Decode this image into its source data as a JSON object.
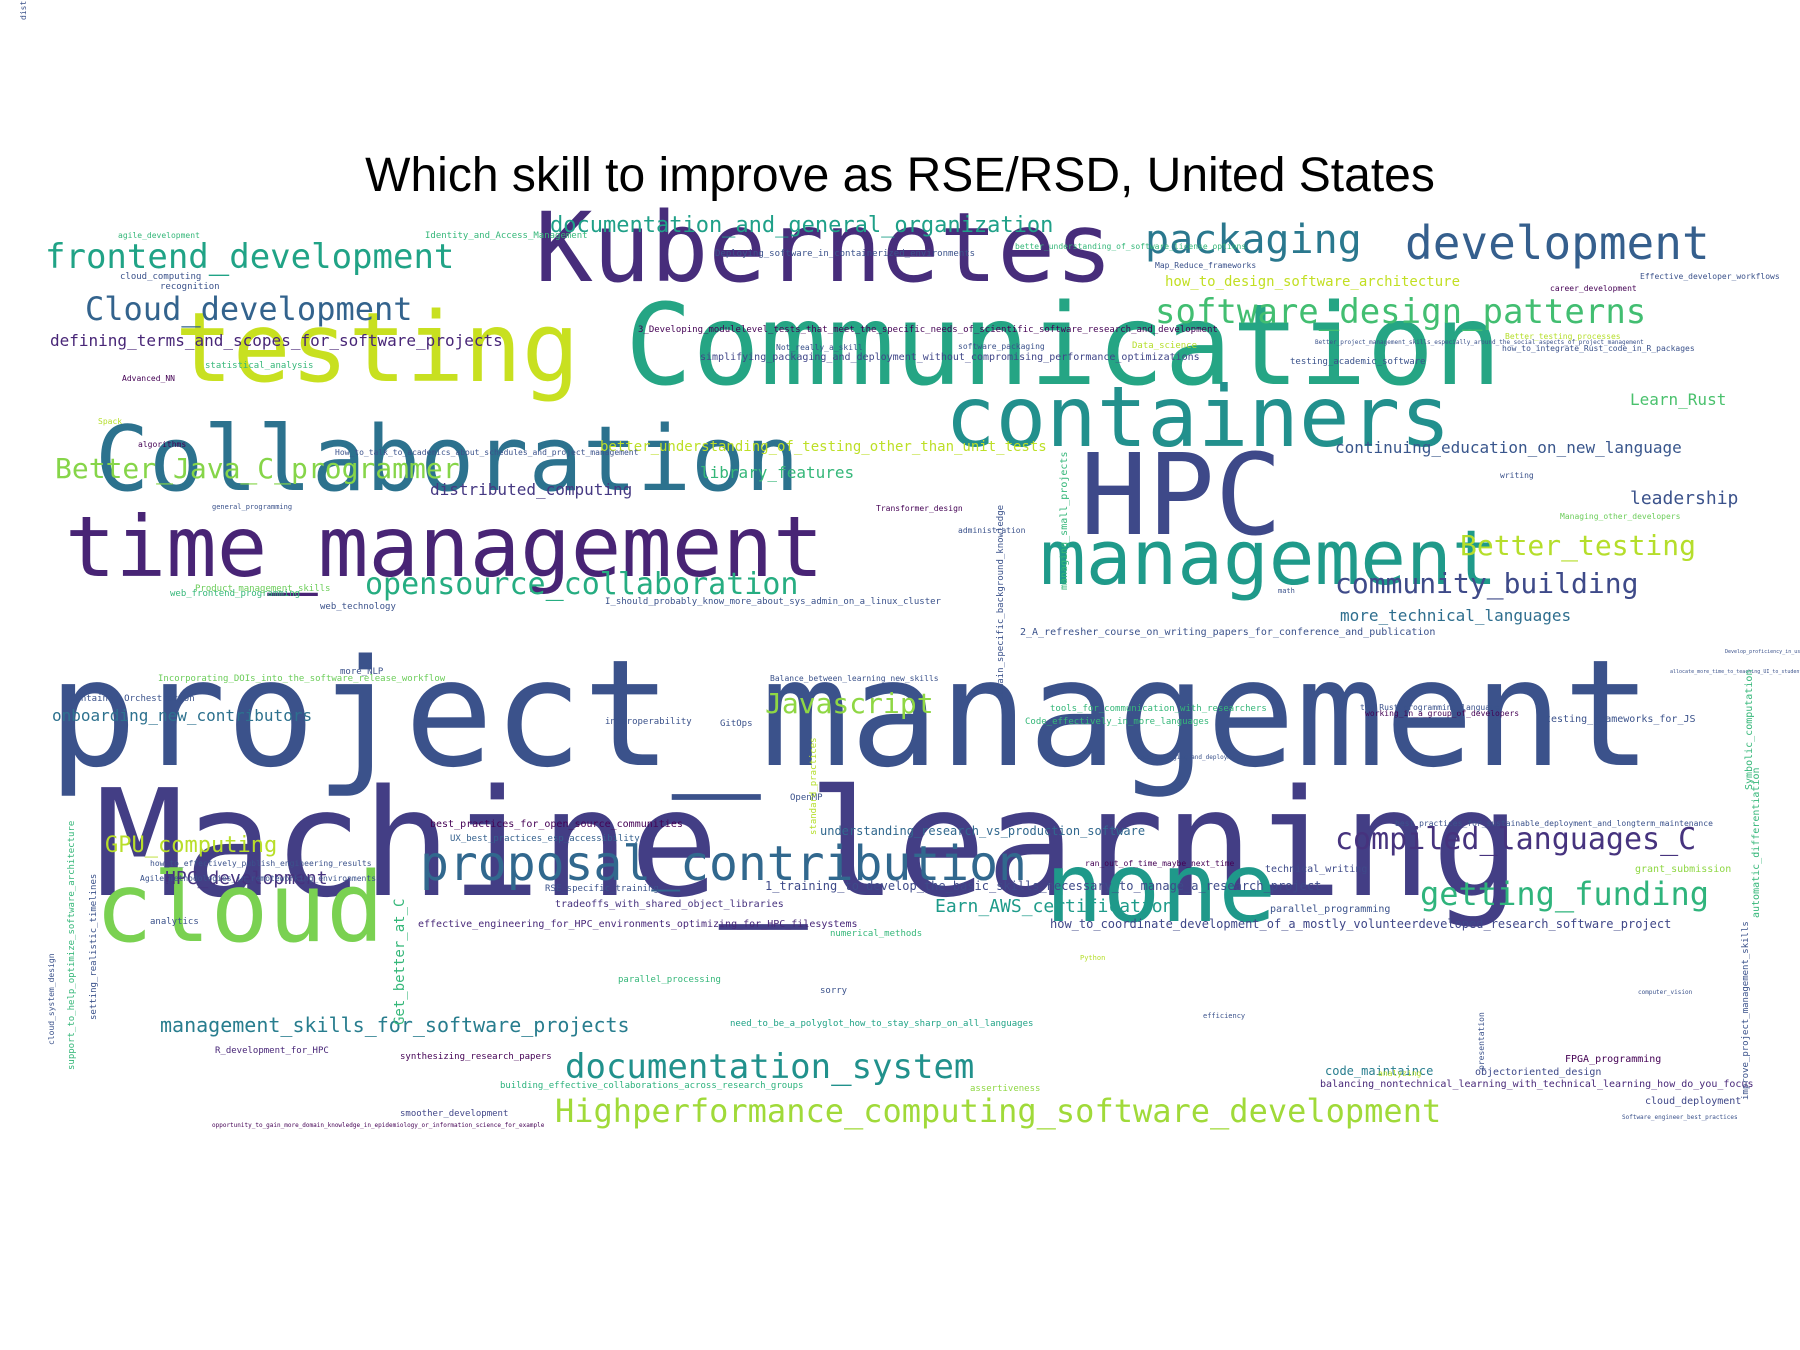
{
  "title": "Which skill to improve as RSE/RSD, United States",
  "words": [
    {
      "t": "project_management",
      "s": 148,
      "c": "#3b528b"
    },
    {
      "t": "Machine_learning",
      "s": 148,
      "c": "#433e85"
    },
    {
      "t": "Communication",
      "s": 112,
      "c": "#25a584"
    },
    {
      "t": "HPC",
      "s": 112,
      "c": "#3e4989"
    },
    {
      "t": "Kubernetes",
      "s": 96,
      "c": "#472d7b"
    },
    {
      "t": "testing",
      "s": 96,
      "c": "#c8e020"
    },
    {
      "t": "Collaboration",
      "s": 90,
      "c": "#2c728e"
    },
    {
      "t": "time_management",
      "s": 84,
      "c": "#482475"
    },
    {
      "t": "containers",
      "s": 84,
      "c": "#22908d"
    },
    {
      "t": "management",
      "s": 76,
      "c": "#1f9a8a"
    },
    {
      "t": "none",
      "s": 96,
      "c": "#1f998a"
    },
    {
      "t": "cloud",
      "s": 96,
      "c": "#7ad151"
    },
    {
      "t": "proposal_contribution",
      "s": 48,
      "c": "#31688e"
    },
    {
      "t": "development",
      "s": 46,
      "c": "#355f8d"
    },
    {
      "t": "packaging",
      "s": 40,
      "c": "#2a788e"
    },
    {
      "t": "frontend_development",
      "s": 34,
      "c": "#20a386"
    },
    {
      "t": "software_design_patterns",
      "s": 34,
      "c": "#42be71"
    },
    {
      "t": "Cloud_development",
      "s": 32,
      "c": "#33638d"
    },
    {
      "t": "documentation_system",
      "s": 34,
      "c": "#21918c"
    },
    {
      "t": "Highperformance_computing_software_development",
      "s": 32,
      "c": "#a0da39"
    },
    {
      "t": "opensource_collaboration",
      "s": 30,
      "c": "#26ad81"
    },
    {
      "t": "Better_Java_C_programmer",
      "s": 28,
      "c": "#86d549"
    },
    {
      "t": "Better_testing",
      "s": 28,
      "c": "#b5de2b"
    },
    {
      "t": "community_building",
      "s": 28,
      "c": "#3e4a89"
    },
    {
      "t": "compiled_languages_C",
      "s": 30,
      "c": "#46337e"
    },
    {
      "t": "getting_funding",
      "s": 32,
      "c": "#2fb47c"
    },
    {
      "t": "Javascript",
      "s": 28,
      "c": "#8fd744"
    },
    {
      "t": "documentation_and_general_organization",
      "s": 22,
      "c": "#1fa088"
    },
    {
      "t": "management_skills_for_software_projects",
      "s": 20,
      "c": "#287d8e"
    },
    {
      "t": "GPU_computing",
      "s": 22,
      "c": "#b8de29"
    },
    {
      "t": "HPC_development",
      "s": 18,
      "c": "#46327e"
    },
    {
      "t": "Earn_AWS_certification",
      "s": 18,
      "c": "#1e9b8a"
    },
    {
      "t": "defining_terms_and_scopes_for_software_projects",
      "s": 16,
      "c": "#482677"
    },
    {
      "t": "distributed_computing",
      "s": 16,
      "c": "#453882"
    },
    {
      "t": "onboarding_new_contributors",
      "s": 16,
      "c": "#2d718e"
    },
    {
      "t": "continuing_education_on_new_language",
      "s": 16,
      "c": "#39568c"
    },
    {
      "t": "leadership",
      "s": 18,
      "c": "#3b528b"
    },
    {
      "t": "Learn_Rust",
      "s": 16,
      "c": "#4ac16d"
    },
    {
      "t": "more_technical_languages",
      "s": 16,
      "c": "#2e6e8e"
    },
    {
      "t": "library_features",
      "s": 16,
      "c": "#35b779"
    },
    {
      "t": "how_to_design_software_architecture",
      "s": 14,
      "c": "#c2df23"
    },
    {
      "t": "better_understanding_of_testing_other_than_unit_tests",
      "s": 14,
      "c": "#bddf26"
    },
    {
      "t": "simplifying_packaging_and_deployment_without_compromising_performance_optimizations",
      "s": 10,
      "c": "#404688"
    },
    {
      "t": "3_Developing_modulelevel_tests_that_meet_the_specific_needs_of_scientific_software_research_and_development",
      "s": 9,
      "c": "#440154"
    },
    {
      "t": "understanding_research_vs_production_software",
      "s": 12,
      "c": "#31688e"
    },
    {
      "t": "1_training_to_develop_the_basic_skills_necessary_to_manage_a_research_project",
      "s": 12,
      "c": "#3e4a89"
    },
    {
      "t": "effective_engineering_for_HPC_environments_optimizing_for_HPC_filesystems",
      "s": 10,
      "c": "#482878"
    },
    {
      "t": "how_to_coordinate_development_of_a_mostly_volunteerdeveloped_research_software_project",
      "s": 12,
      "c": "#3f4788"
    },
    {
      "t": "tradeoffs_with_shared_object_libraries",
      "s": 10,
      "c": "#46327e"
    },
    {
      "t": "best_practices_for_open_source_communities",
      "s": 10,
      "c": "#440154"
    },
    {
      "t": "UX_best_practices_esp_accessibility",
      "s": 9,
      "c": "#34608d"
    },
    {
      "t": "how_to_effectively_publish_engineering_results",
      "s": 8,
      "c": "#3b528b"
    },
    {
      "t": "Agile_methodologies_in_remoteworking_environments",
      "s": 8,
      "c": "#3b528b"
    },
    {
      "t": "RSE_specific_training",
      "s": 9,
      "c": "#3b528b"
    },
    {
      "t": "need_to_be_a_polyglot_how_to_stay_sharp_on_all_languages",
      "s": 9,
      "c": "#20a386"
    },
    {
      "t": "building_effective_collaborations_across_research_groups",
      "s": 9,
      "c": "#2db27d"
    },
    {
      "t": "synthesizing_research_papers",
      "s": 9,
      "c": "#440154"
    },
    {
      "t": "R_development_for_HPC",
      "s": 9,
      "c": "#482677"
    },
    {
      "t": "smoother_development",
      "s": 9,
      "c": "#404688"
    },
    {
      "t": "opportunity_to_gain_more_domain_knowledge_in_epidemiology_or_information_science_for_example",
      "s": 6,
      "c": "#440154"
    },
    {
      "t": "code_maintaince",
      "s": 12,
      "c": "#287d8e"
    },
    {
      "t": "objectoriented_design",
      "s": 10,
      "c": "#3e4a89"
    },
    {
      "t": "balancing_nontechnical_learning_with_technical_learning_how_do_you_focus",
      "s": 10,
      "c": "#482878"
    },
    {
      "t": "cloud_deployment",
      "s": 10,
      "c": "#3f4788"
    },
    {
      "t": "FPGA_programming",
      "s": 10,
      "c": "#440154"
    },
    {
      "t": "parallel_programming",
      "s": 10,
      "c": "#3b528b"
    },
    {
      "t": "technical_writing",
      "s": 10,
      "c": "#3e4a89"
    },
    {
      "t": "grant_submission",
      "s": 10,
      "c": "#8fd744"
    },
    {
      "t": "best_practices_for_sustainable_deployment_and_longterm_maintenance",
      "s": 8,
      "c": "#3b528b"
    },
    {
      "t": "ran_out_of_time_maybe_next_time",
      "s": 8,
      "c": "#440154"
    },
    {
      "t": "testing_frameworks_for_JS",
      "s": 10,
      "c": "#3b528b"
    },
    {
      "t": "working_in_a_group_of_developers",
      "s": 8,
      "c": "#440154"
    },
    {
      "t": "tools_for_communication_with_researchers",
      "s": 9,
      "c": "#35b779"
    },
    {
      "t": "Code_effectively_in_more_languages",
      "s": 9,
      "c": "#35b779"
    },
    {
      "t": "2_A_refresher_course_on_writing_papers_for_conference_and_publication",
      "s": 10,
      "c": "#3b528b"
    },
    {
      "t": "I_should_probably_know_more_about_sys_admin_on_a_linux_cluster",
      "s": 9,
      "c": "#3b528b"
    },
    {
      "t": "Balance_between_learning_new_skills",
      "s": 8,
      "c": "#3b528b"
    },
    {
      "t": "Container_Orchestration",
      "s": 9,
      "c": "#3b528b"
    },
    {
      "t": "Incorporating_DOIs_into_the_software_release_workflow",
      "s": 9,
      "c": "#6ccd5a"
    },
    {
      "t": "web_frontend_programming",
      "s": 9,
      "c": "#35b779"
    },
    {
      "t": "Product_management_skills",
      "s": 9,
      "c": "#6ccd5a"
    },
    {
      "t": "web_technology",
      "s": 9,
      "c": "#3b528b"
    },
    {
      "t": "more_NLP",
      "s": 9,
      "c": "#3b528b"
    },
    {
      "t": "interoperability",
      "s": 9,
      "c": "#3b528b"
    },
    {
      "t": "GitOps",
      "s": 9,
      "c": "#3b528b"
    },
    {
      "t": "OpenMP",
      "s": 9,
      "c": "#3b528b"
    },
    {
      "t": "numerical_methods",
      "s": 9,
      "c": "#35b779"
    },
    {
      "t": "analytics",
      "s": 9,
      "c": "#3b528b"
    },
    {
      "t": "parallel_processing",
      "s": 9,
      "c": "#35b779"
    },
    {
      "t": "sorry",
      "s": 9,
      "c": "#3b528b"
    },
    {
      "t": "assertiveness",
      "s": 9,
      "c": "#8fd744"
    },
    {
      "t": "agile_development",
      "s": 8,
      "c": "#35b779"
    },
    {
      "t": "Identity_and_Access_Management",
      "s": 9,
      "c": "#35b779"
    },
    {
      "t": "cloud_computing",
      "s": 9,
      "c": "#3b528b"
    },
    {
      "t": "recognition",
      "s": 9,
      "c": "#3b528b"
    },
    {
      "t": "Deploying_software_in_containerized_environments",
      "s": 9,
      "c": "#3b528b"
    },
    {
      "t": "better_understanding_of_software_license_options",
      "s": 8,
      "c": "#35b779"
    },
    {
      "t": "Map_Reduce_frameworks",
      "s": 8,
      "c": "#3b528b"
    },
    {
      "t": "career_development",
      "s": 8,
      "c": "#440154"
    },
    {
      "t": "Effective_developer_workflows",
      "s": 9,
      "c": "#3b528b"
    },
    {
      "t": "Better_testing_processes",
      "s": 8,
      "c": "#b5de2b"
    },
    {
      "t": "how_to_integrate_Rust_code_in_R_packages",
      "s": 8,
      "c": "#3b528b"
    },
    {
      "t": "testing_academic_software",
      "s": 9,
      "c": "#3b528b"
    },
    {
      "t": "Better_project_management_skills_especially_around_the_social_aspects_of_project_management",
      "s": 6,
      "c": "#3b528b"
    },
    {
      "t": "Data_science",
      "s": 9,
      "c": "#b5de2b"
    },
    {
      "t": "software_packaging",
      "s": 8,
      "c": "#3b528b"
    },
    {
      "t": "Not_really_a_skill",
      "s": 8,
      "c": "#3b528b"
    },
    {
      "t": "statistical_analysis",
      "s": 9,
      "c": "#35b779"
    },
    {
      "t": "Advanced_NN",
      "s": 8,
      "c": "#440154"
    },
    {
      "t": "Spack",
      "s": 8,
      "c": "#b5de2b"
    },
    {
      "t": "algorithms",
      "s": 8,
      "c": "#440154"
    },
    {
      "t": "How_to_talk_to_academics_about_schedules_and_project_management",
      "s": 8,
      "c": "#3b528b"
    },
    {
      "t": "general_programming",
      "s": 7,
      "c": "#3b528b"
    },
    {
      "t": "Transformer_design",
      "s": 8,
      "c": "#440154"
    },
    {
      "t": "administration",
      "s": 8,
      "c": "#3b528b"
    },
    {
      "t": "math",
      "s": 7,
      "c": "#3b528b"
    },
    {
      "t": "writing",
      "s": 8,
      "c": "#3b528b"
    },
    {
      "t": "Managing_other_developers",
      "s": 8,
      "c": "#6ccd5a"
    },
    {
      "t": "the_Rust_programming_language",
      "s": 8,
      "c": "#3b528b"
    },
    {
      "t": "allocate_more_time_to_teaching_UI_to_students",
      "s": 6,
      "c": "#3b528b"
    },
    {
      "t": "Code_packaging_and_deployment",
      "s": 6,
      "c": "#3b528b"
    },
    {
      "t": "Python",
      "s": 7,
      "c": "#b5de2b"
    },
    {
      "t": "efficiency",
      "s": 7,
      "c": "#3b528b"
    },
    {
      "t": "analyzing",
      "s": 8,
      "c": "#b5de2b"
    },
    {
      "t": "computer_vision",
      "s": 6,
      "c": "#3b528b"
    },
    {
      "t": "Software_engineer_best_practices",
      "s": 6,
      "c": "#3b528b"
    },
    {
      "t": "Develop_proficiency_in_using_LAMMPS_MD",
      "s": 6,
      "c": "#3b528b"
    },
    {
      "t": "Symbolic_computation",
      "s": 10,
      "c": "#35b779",
      "r": 1
    },
    {
      "t": "improve_project_management_skills",
      "s": 9,
      "c": "#3b528b",
      "r": 1
    },
    {
      "t": "automatic_differentiation",
      "s": 10,
      "c": "#35b779",
      "r": 1
    },
    {
      "t": "cloud_system_design",
      "s": 8,
      "c": "#3b528b",
      "r": 1
    },
    {
      "t": "support_to_help_optimize_software_architecture",
      "s": 9,
      "c": "#35b779",
      "r": 1
    },
    {
      "t": "setting_realistic_timelines",
      "s": 9,
      "c": "#3b528b",
      "r": 1
    },
    {
      "t": "Get_better_at_C",
      "s": 14,
      "c": "#35b779",
      "r": 1
    },
    {
      "t": "domain_specific_background_knowledge",
      "s": 9,
      "c": "#3b528b",
      "r": 1
    },
    {
      "t": "managing_small_projects",
      "s": 10,
      "c": "#35b779",
      "r": 1
    },
    {
      "t": "presentation",
      "s": 8,
      "c": "#3b528b",
      "r": 1
    },
    {
      "t": "standard_practices",
      "s": 9,
      "c": "#b5de2b",
      "r": 1
    },
    {
      "t": "distribution",
      "s": 8,
      "c": "#3b528b",
      "r": 1
    }
  ]
}
